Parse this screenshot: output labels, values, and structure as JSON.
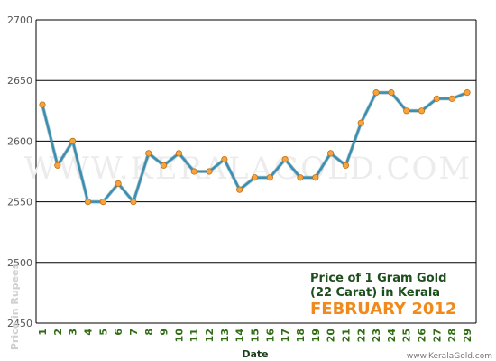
{
  "chart_data": {
    "type": "line",
    "x": [
      1,
      2,
      3,
      4,
      5,
      6,
      7,
      8,
      9,
      10,
      11,
      12,
      13,
      14,
      15,
      16,
      17,
      18,
      19,
      20,
      21,
      22,
      23,
      24,
      25,
      26,
      27,
      28,
      29
    ],
    "series": [
      {
        "values": [
          2630,
          2580,
          2600,
          2550,
          2550,
          2565,
          2550,
          2590,
          2580,
          2590,
          2575,
          2575,
          2585,
          2560,
          2570,
          2570,
          2585,
          2570,
          2570,
          2590,
          2580,
          2615,
          2640,
          2640,
          2625,
          2625,
          2635,
          2635,
          2640
        ]
      }
    ],
    "ylim": [
      2450,
      2700
    ],
    "yticks": [
      2450,
      2500,
      2550,
      2600,
      2650,
      2700
    ],
    "xlabel": "Date",
    "ylabel": "Price in Rupees",
    "title_line1": "Price of 1 Gram Gold",
    "title_line2": "(22 Carat) in Kerala",
    "title_month": "FEBRUARY 2012",
    "watermark": "WWW.KERALAGOLD.COM",
    "credit": "www.KeralaGold.com",
    "grid": "horizontal",
    "colors": {
      "line": "#3a8fb0",
      "marker": "#f5a540",
      "marker_stroke": "#c36e10",
      "grid": "#000000"
    }
  }
}
